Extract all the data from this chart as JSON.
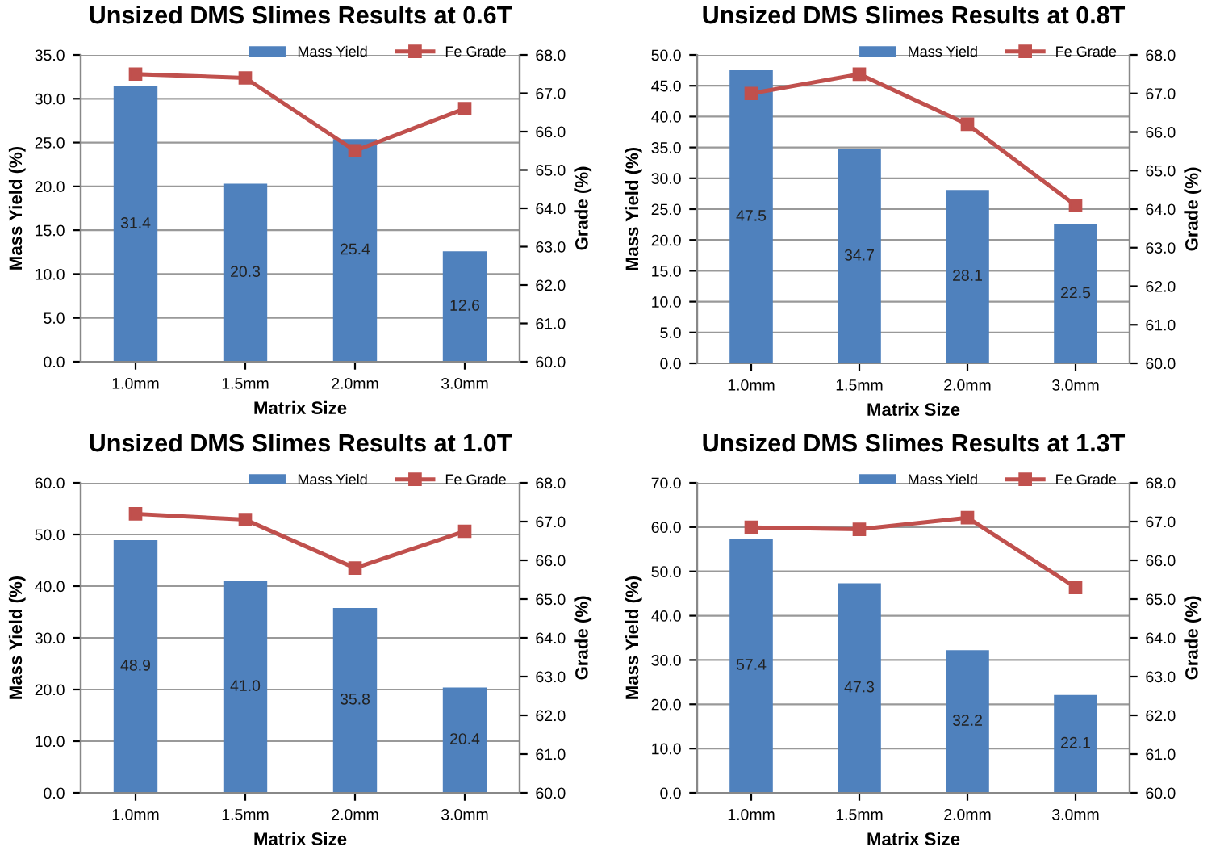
{
  "chart_data": [
    {
      "type": "bar",
      "title": "Unsized DMS Slimes Results at 0.6T",
      "xlabel": "Matrix Size",
      "ylabel": "Mass Yield (%)",
      "y2label": "Grade (%)",
      "categories": [
        "1.0mm",
        "1.5mm",
        "2.0mm",
        "3.0mm"
      ],
      "ylim": [
        0,
        35
      ],
      "yticks": [
        {
          "value": 0,
          "label": "0.0"
        },
        {
          "value": 5,
          "label": "5.0"
        },
        {
          "value": 10,
          "label": "10.0"
        },
        {
          "value": 15,
          "label": "15.0"
        },
        {
          "value": 20,
          "label": "20.0"
        },
        {
          "value": 25,
          "label": "25.0"
        },
        {
          "value": 30,
          "label": "30.0"
        },
        {
          "value": 35,
          "label": "35.0"
        }
      ],
      "y2lim": [
        60,
        68
      ],
      "y2ticks": [
        {
          "value": 60,
          "label": "60.0"
        },
        {
          "value": 61,
          "label": "61.0"
        },
        {
          "value": 62,
          "label": "62.0"
        },
        {
          "value": 63,
          "label": "63.0"
        },
        {
          "value": 64,
          "label": "64.0"
        },
        {
          "value": 65,
          "label": "65.0"
        },
        {
          "value": 66,
          "label": "66.0"
        },
        {
          "value": 67,
          "label": "67.0"
        },
        {
          "value": 68,
          "label": "68.0"
        }
      ],
      "grid": "y",
      "legend": "top",
      "marker": "square",
      "series": [
        {
          "name": "Mass Yield",
          "color": "#4f81bd",
          "values": [
            31.4,
            20.3,
            25.4,
            12.6
          ],
          "value_labels": [
            "31.4",
            "20.3",
            "25.4",
            "12.6"
          ]
        },
        {
          "name": "Fe Grade",
          "type": "line",
          "axis": "y2",
          "color": "#c0504d",
          "values": [
            67.5,
            67.4,
            65.5,
            66.6
          ]
        }
      ]
    },
    {
      "type": "bar",
      "title": "Unsized DMS Slimes Results at 0.8T",
      "xlabel": "Matrix Size",
      "ylabel": "Mass Yield (%)",
      "y2label": "Grade (%)",
      "categories": [
        "1.0mm",
        "1.5mm",
        "2.0mm",
        "3.0mm"
      ],
      "ylim": [
        0,
        50
      ],
      "yticks": [
        {
          "value": 0,
          "label": "0.0"
        },
        {
          "value": 5,
          "label": "5.0"
        },
        {
          "value": 10,
          "label": "10.0"
        },
        {
          "value": 15,
          "label": "15.0"
        },
        {
          "value": 20,
          "label": "20.0"
        },
        {
          "value": 25,
          "label": "25.0"
        },
        {
          "value": 30,
          "label": "30.0"
        },
        {
          "value": 35,
          "label": "35.0"
        },
        {
          "value": 40,
          "label": "40.0"
        },
        {
          "value": 45,
          "label": "45.0"
        },
        {
          "value": 50,
          "label": "50.0"
        }
      ],
      "y2lim": [
        60,
        68
      ],
      "y2ticks": [
        {
          "value": 60,
          "label": "60.0"
        },
        {
          "value": 61,
          "label": "61.0"
        },
        {
          "value": 62,
          "label": "62.0"
        },
        {
          "value": 63,
          "label": "63.0"
        },
        {
          "value": 64,
          "label": "64.0"
        },
        {
          "value": 65,
          "label": "65.0"
        },
        {
          "value": 66,
          "label": "66.0"
        },
        {
          "value": 67,
          "label": "67.0"
        },
        {
          "value": 68,
          "label": "68.0"
        }
      ],
      "grid": "y",
      "legend": "top",
      "marker": "square",
      "series": [
        {
          "name": "Mass Yield",
          "color": "#4f81bd",
          "values": [
            47.5,
            34.7,
            28.1,
            22.5
          ],
          "value_labels": [
            "47.5",
            "34.7",
            "28.1",
            "22.5"
          ]
        },
        {
          "name": "Fe Grade",
          "type": "line",
          "axis": "y2",
          "color": "#c0504d",
          "values": [
            67.0,
            67.5,
            66.2,
            64.1
          ]
        }
      ]
    },
    {
      "type": "bar",
      "title": "Unsized DMS Slimes Results at 1.0T",
      "xlabel": "Matrix Size",
      "ylabel": "Mass Yield (%)",
      "y2label": "Grade (%)",
      "categories": [
        "1.0mm",
        "1.5mm",
        "2.0mm",
        "3.0mm"
      ],
      "ylim": [
        0,
        60
      ],
      "yticks": [
        {
          "value": 0,
          "label": "0.0"
        },
        {
          "value": 10,
          "label": "10.0"
        },
        {
          "value": 20,
          "label": "20.0"
        },
        {
          "value": 30,
          "label": "30.0"
        },
        {
          "value": 40,
          "label": "40.0"
        },
        {
          "value": 50,
          "label": "50.0"
        },
        {
          "value": 60,
          "label": "60.0"
        }
      ],
      "y2lim": [
        60,
        68
      ],
      "y2ticks": [
        {
          "value": 60,
          "label": "60.0"
        },
        {
          "value": 61,
          "label": "61.0"
        },
        {
          "value": 62,
          "label": "62.0"
        },
        {
          "value": 63,
          "label": "63.0"
        },
        {
          "value": 64,
          "label": "64.0"
        },
        {
          "value": 65,
          "label": "65.0"
        },
        {
          "value": 66,
          "label": "66.0"
        },
        {
          "value": 67,
          "label": "67.0"
        },
        {
          "value": 68,
          "label": "68.0"
        }
      ],
      "grid": "y",
      "legend": "top",
      "marker": "square",
      "series": [
        {
          "name": "Mass Yield",
          "color": "#4f81bd",
          "values": [
            48.9,
            41.0,
            35.8,
            20.4
          ],
          "value_labels": [
            "48.9",
            "41.0",
            "35.8",
            "20.4"
          ]
        },
        {
          "name": "Fe Grade",
          "type": "line",
          "axis": "y2",
          "color": "#c0504d",
          "values": [
            67.2,
            67.05,
            65.8,
            66.75
          ]
        }
      ]
    },
    {
      "type": "bar",
      "title": "Unsized DMS Slimes Results at 1.3T",
      "xlabel": "Matrix Size",
      "ylabel": "Mass Yield (%)",
      "y2label": "Grade (%)",
      "categories": [
        "1.0mm",
        "1.5mm",
        "2.0mm",
        "3.0mm"
      ],
      "ylim": [
        0,
        70
      ],
      "yticks": [
        {
          "value": 0,
          "label": "0.0"
        },
        {
          "value": 10,
          "label": "10.0"
        },
        {
          "value": 20,
          "label": "20.0"
        },
        {
          "value": 30,
          "label": "30.0"
        },
        {
          "value": 40,
          "label": "40.0"
        },
        {
          "value": 50,
          "label": "50.0"
        },
        {
          "value": 60,
          "label": "60.0"
        },
        {
          "value": 70,
          "label": "70.0"
        }
      ],
      "y2lim": [
        60,
        68
      ],
      "y2ticks": [
        {
          "value": 60,
          "label": "60.0"
        },
        {
          "value": 61,
          "label": "61.0"
        },
        {
          "value": 62,
          "label": "62.0"
        },
        {
          "value": 63,
          "label": "63.0"
        },
        {
          "value": 64,
          "label": "64.0"
        },
        {
          "value": 65,
          "label": "65.0"
        },
        {
          "value": 66,
          "label": "66.0"
        },
        {
          "value": 67,
          "label": "67.0"
        },
        {
          "value": 68,
          "label": "68.0"
        }
      ],
      "grid": "y",
      "legend": "top",
      "marker": "square",
      "series": [
        {
          "name": "Mass Yield",
          "color": "#4f81bd",
          "values": [
            57.4,
            47.3,
            32.2,
            22.1
          ],
          "value_labels": [
            "57.4",
            "47.3",
            "32.2",
            "22.1"
          ]
        },
        {
          "name": "Fe Grade",
          "type": "line",
          "axis": "y2",
          "color": "#c0504d",
          "values": [
            66.85,
            66.8,
            67.1,
            65.3
          ]
        }
      ]
    }
  ]
}
